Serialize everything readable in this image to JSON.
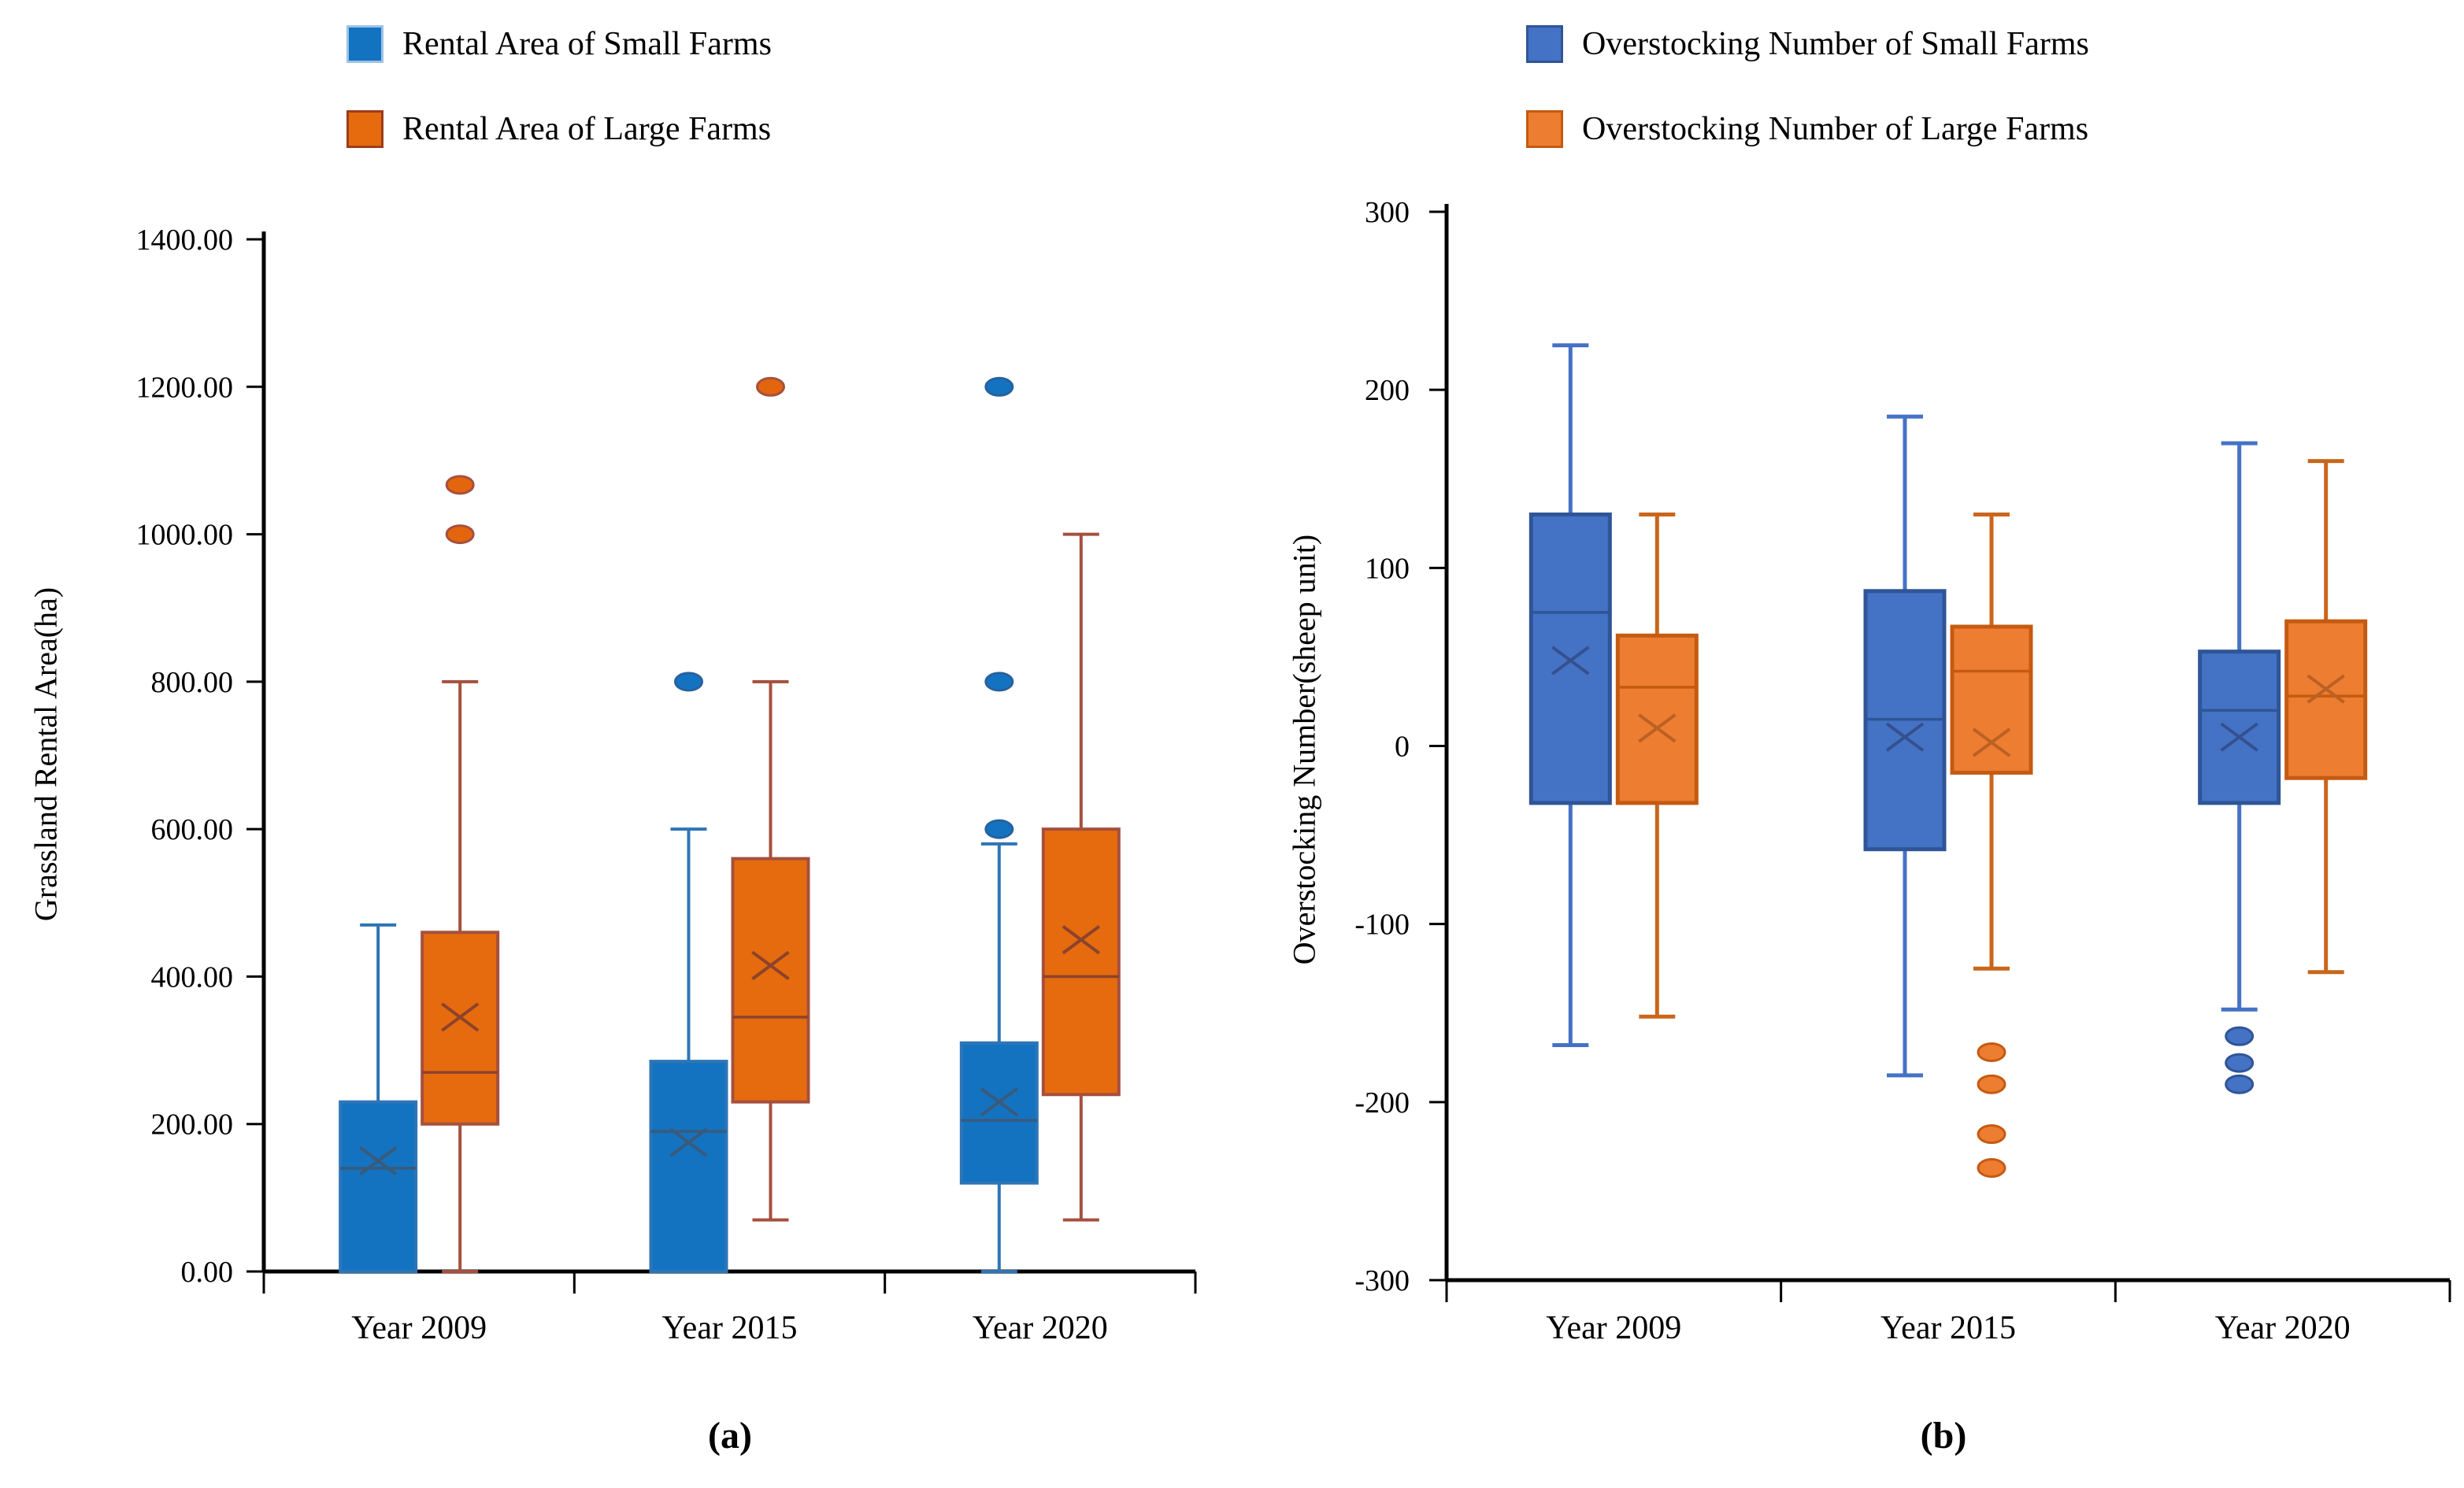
{
  "chart_data": [
    {
      "type": "boxplot",
      "panel_label": "(a)",
      "ylabel": "Grassland Rental Area(ha)",
      "ylim": [
        0,
        1400
      ],
      "ytick_values": [
        0,
        200,
        400,
        600,
        800,
        1000,
        1200,
        1400
      ],
      "ytick_labels": [
        "0.00",
        "200.00",
        "400.00",
        "600.00",
        "800.00",
        "1000.00",
        "1200.00",
        "1400.00"
      ],
      "categories": [
        "Year 2009",
        "Year 2015",
        "Year 2020"
      ],
      "grid": false,
      "legend_position": "top-left",
      "series": [
        {
          "name": "Rental Area of Small Farms",
          "colors": {
            "fill": "#1473C0",
            "stroke": "#2E75B6",
            "whisker": "#2E75B6",
            "median": "#3A5A7A",
            "mean": "#3A5A7A",
            "outlier_fill": "#1473C0",
            "outlier_stroke": "#2761A0",
            "legend_border": "#9DC3E6"
          },
          "boxes": [
            {
              "category": "Year 2009",
              "min": 0,
              "q1": 0,
              "median": 140,
              "mean": 150,
              "q3": 230,
              "max": 470,
              "outliers": []
            },
            {
              "category": "Year 2015",
              "min": 0,
              "q1": 0,
              "median": 190,
              "mean": 175,
              "q3": 285,
              "max": 600,
              "outliers": [
                800
              ]
            },
            {
              "category": "Year 2020",
              "min": 0,
              "q1": 120,
              "median": 205,
              "mean": 230,
              "q3": 310,
              "max": 580,
              "outliers": [
                600,
                800,
                1200
              ]
            }
          ]
        },
        {
          "name": "Rental Area of Large Farms",
          "colors": {
            "fill": "#E56B0E",
            "stroke": "#A5503E",
            "whisker": "#A5503E",
            "median": "#8C422C",
            "mean": "#8C422C",
            "outlier_fill": "#E3650D",
            "outlier_stroke": "#A5503E",
            "legend_border": "#9C3D1E"
          },
          "boxes": [
            {
              "category": "Year 2009",
              "min": 0,
              "q1": 200,
              "median": 270,
              "mean": 345,
              "q3": 460,
              "max": 800,
              "outliers": [
                1000,
                1067
              ]
            },
            {
              "category": "Year 2015",
              "min": 70,
              "q1": 230,
              "median": 345,
              "mean": 415,
              "q3": 560,
              "max": 800,
              "outliers": [
                1200
              ]
            },
            {
              "category": "Year 2020",
              "min": 70,
              "q1": 240,
              "median": 400,
              "mean": 450,
              "q3": 600,
              "max": 1000,
              "outliers": []
            }
          ]
        }
      ]
    },
    {
      "type": "boxplot",
      "panel_label": "(b)",
      "ylabel": "Overstocking Number(sheep unit)",
      "ylim": [
        -300,
        300
      ],
      "ytick_values": [
        -300,
        -200,
        -100,
        0,
        100,
        200,
        300
      ],
      "ytick_labels": [
        "-300",
        "-200",
        "-100",
        "0",
        "100",
        "200",
        "300"
      ],
      "categories": [
        "Year 2009",
        "Year 2015",
        "Year 2020"
      ],
      "grid": false,
      "legend_position": "top-left",
      "series": [
        {
          "name": "Overstocking Number of Small Farms",
          "colors": {
            "fill": "#4472C4",
            "stroke": "#2F5597",
            "whisker": "#4472C4",
            "median": "#2F5597",
            "mean": "#35508F",
            "outlier_fill": "#4472C4",
            "outlier_stroke": "#2F5597",
            "legend_border": "#2F5597"
          },
          "boxes": [
            {
              "category": "Year 2009",
              "min": -168,
              "q1": -32,
              "median": 75,
              "mean": 48,
              "q3": 130,
              "max": 225,
              "outliers": []
            },
            {
              "category": "Year 2015",
              "min": -185,
              "q1": -58,
              "median": 15,
              "mean": 5,
              "q3": 87,
              "max": 185,
              "outliers": []
            },
            {
              "category": "Year 2020",
              "min": -148,
              "q1": -32,
              "median": 20,
              "mean": 5,
              "q3": 53,
              "max": 170,
              "outliers": [
                -163,
                -178,
                -190
              ]
            }
          ]
        },
        {
          "name": "Overstocking Number of Large Farms",
          "colors": {
            "fill": "#ED7D31",
            "stroke": "#C55A11",
            "whisker": "#C9661B",
            "median": "#C55A11",
            "mean": "#BC6023",
            "outlier_fill": "#ED7D31",
            "outlier_stroke": "#C55A11",
            "legend_border": "#C55A11"
          },
          "boxes": [
            {
              "category": "Year 2009",
              "min": -152,
              "q1": -32,
              "median": 33,
              "mean": 10,
              "q3": 62,
              "max": 130,
              "outliers": []
            },
            {
              "category": "Year 2015",
              "min": -125,
              "q1": -15,
              "median": 42,
              "mean": 2,
              "q3": 67,
              "max": 130,
              "outliers": [
                -172,
                -190,
                -218,
                -237
              ]
            },
            {
              "category": "Year 2020",
              "min": -127,
              "q1": -18,
              "median": 28,
              "mean": 32,
              "q3": 70,
              "max": 160,
              "outliers": []
            }
          ]
        }
      ]
    }
  ]
}
